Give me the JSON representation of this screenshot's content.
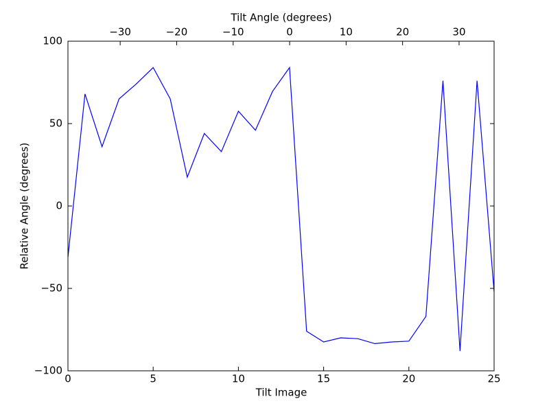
{
  "chart_data": {
    "type": "line",
    "xlabel": "Tilt Image",
    "ylabel": "Relative Angle (degrees)",
    "x2label": "Tilt Angle (degrees)",
    "x": [
      0,
      1,
      2,
      3,
      4,
      5,
      6,
      7,
      8,
      9,
      10,
      11,
      12,
      13,
      14,
      15,
      16,
      17,
      18,
      19,
      20,
      21,
      22,
      23,
      24,
      25
    ],
    "series": [
      {
        "color": "#0000ff",
        "values": [
          -31,
          68,
          36,
          65,
          74,
          84,
          65,
          17.5,
          44,
          33,
          57.5,
          46,
          69.5,
          84,
          -76,
          -82.5,
          -80,
          -80.5,
          -83.5,
          -82.5,
          -82,
          -67,
          76,
          -88,
          76,
          -52
        ]
      }
    ],
    "xlim": [
      0,
      25
    ],
    "xticks": [
      0,
      5,
      10,
      15,
      20,
      25
    ],
    "ylim": [
      -100,
      100
    ],
    "yticks": [
      {
        "value": -100,
        "label": "−100"
      },
      {
        "value": -50,
        "label": "−50"
      },
      0,
      50,
      100
    ],
    "x2lim": [
      -39.25,
      36.2
    ],
    "x2ticks": [
      {
        "value": -30,
        "label": "−30"
      },
      {
        "value": -20,
        "label": "−20"
      },
      {
        "value": -10,
        "label": "−10"
      },
      0,
      10,
      20,
      30
    ]
  }
}
